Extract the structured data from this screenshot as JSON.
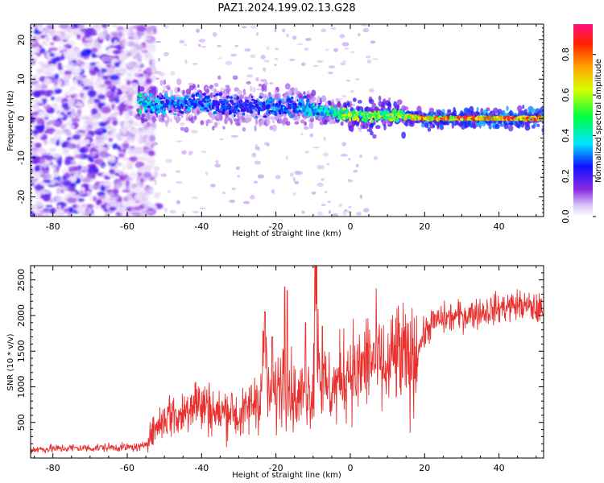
{
  "title": "PAZ1.2024.199.02.13.G28",
  "chart_data": [
    {
      "type": "heatmap",
      "xlabel": "Height of straight line (km)",
      "ylabel": "Frequency (Hz)",
      "xlim": [
        -86,
        52
      ],
      "ylim": [
        -25,
        24
      ],
      "xticks": [
        -80,
        -60,
        -40,
        -20,
        0,
        20,
        40
      ],
      "yticks": [
        -20,
        -10,
        0,
        10,
        20
      ],
      "colorbar": {
        "label": "Normalized spectral amplitude",
        "range": [
          0,
          0.95
        ],
        "ticks": [
          0.0,
          0.2,
          0.4,
          0.6,
          0.8
        ],
        "colormap": "hsv rainbow (white-purple-blue-cyan-green-yellow-red)"
      },
      "signal_track": [
        {
          "x": -56,
          "freq": 4,
          "amp": 0.45
        },
        {
          "x": -50,
          "freq": 3.5,
          "amp": 0.35
        },
        {
          "x": -45,
          "freq": 3.5,
          "amp": 0.35
        },
        {
          "x": -40,
          "freq": 4,
          "amp": 0.35
        },
        {
          "x": -35,
          "freq": 3.5,
          "amp": 0.3
        },
        {
          "x": -30,
          "freq": 3,
          "amp": 0.3
        },
        {
          "x": -25,
          "freq": 3,
          "amp": 0.3
        },
        {
          "x": -20,
          "freq": 3.5,
          "amp": 0.35
        },
        {
          "x": -15,
          "freq": 3,
          "amp": 0.35
        },
        {
          "x": -10,
          "freq": 2.5,
          "amp": 0.4
        },
        {
          "x": -5,
          "freq": 1.5,
          "amp": 0.5
        },
        {
          "x": 0,
          "freq": 0.8,
          "amp": 0.65
        },
        {
          "x": 5,
          "freq": 0.5,
          "amp": 0.65
        },
        {
          "x": 10,
          "freq": 0.8,
          "amp": 0.6
        },
        {
          "x": 15,
          "freq": 0.6,
          "amp": 0.7
        },
        {
          "x": 20,
          "freq": 0,
          "amp": 0.85
        },
        {
          "x": 30,
          "freq": 0,
          "amp": 0.9
        },
        {
          "x": 40,
          "freq": 0,
          "amp": 0.9
        },
        {
          "x": 52,
          "freq": 0,
          "amp": 0.9
        }
      ]
    },
    {
      "type": "line",
      "xlabel": "Height of straight line (km)",
      "ylabel": "SNR (10 * v/v)",
      "xlim": [
        -86,
        52
      ],
      "ylim": [
        0,
        2700
      ],
      "xticks": [
        -80,
        -60,
        -40,
        -20,
        0,
        20,
        40
      ],
      "yticks": [
        500,
        1000,
        1500,
        2000,
        2500
      ],
      "color": "#e8312e",
      "series": [
        {
          "x": [
            -86,
            -80,
            -75,
            -70,
            -65,
            -60,
            -56,
            -54,
            -52,
            -50,
            -48,
            -46,
            -44,
            -42,
            -40,
            -38,
            -36,
            -34,
            -32,
            -30,
            -28,
            -26,
            -24,
            -23,
            -22,
            -20,
            -18,
            -16,
            -14,
            -12,
            -10,
            -9.5,
            -8,
            -6,
            -4,
            -2,
            0,
            2,
            4,
            6,
            8,
            10,
            12,
            14,
            16,
            18,
            20,
            22,
            25,
            30,
            35,
            40,
            45,
            50,
            52
          ],
          "y": [
            120,
            130,
            140,
            140,
            150,
            150,
            150,
            300,
            450,
            550,
            650,
            550,
            700,
            850,
            700,
            750,
            600,
            650,
            700,
            550,
            650,
            800,
            900,
            1700,
            800,
            900,
            1200,
            950,
            800,
            1000,
            900,
            2650,
            1100,
            950,
            1000,
            1150,
            1300,
            1150,
            1350,
            1400,
            1300,
            1200,
            1450,
            1400,
            1300,
            1500,
            1750,
            1900,
            1950,
            2000,
            2050,
            2100,
            2150,
            2100,
            2050
          ]
        }
      ]
    }
  ]
}
